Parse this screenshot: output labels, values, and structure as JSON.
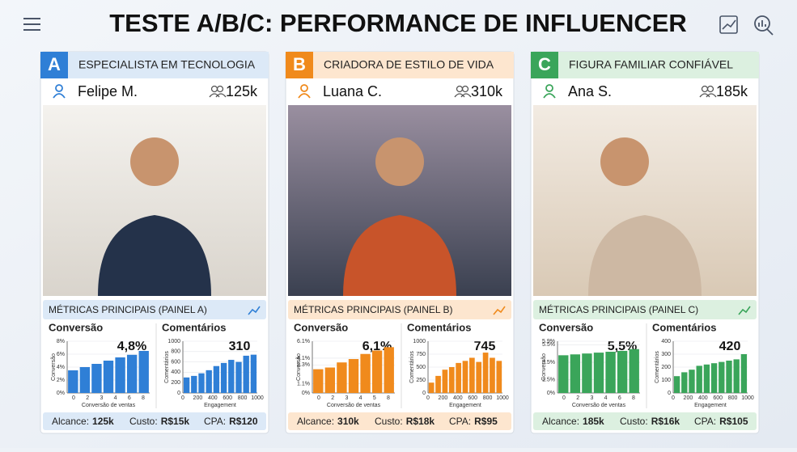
{
  "title": "TESTE A/B/C: PERFORMANCE DE INFLUENCER",
  "panels": [
    {
      "letter": "A",
      "color": "#2f7fd6",
      "tint": "#dce9f7",
      "category": "ESPECIALISTA EM TECNOLOGIA",
      "name": "Felipe M.",
      "followers": "125k",
      "metrics_title": "MÉTRICAS PRINCIPAIS (PAINEL A)",
      "conversion": {
        "title": "Conversão",
        "big_label": "4,8%",
        "ylabel": "Conversão",
        "xlabel": "Conversão de ventas",
        "ylim": [
          0,
          8
        ],
        "yticks": [
          {
            "value": 0,
            "label": "0%"
          },
          {
            "value": 2,
            "label": "2%"
          },
          {
            "value": 4,
            "label": "4%"
          },
          {
            "value": 6,
            "label": "6%"
          },
          {
            "value": 8,
            "label": "8%"
          }
        ],
        "xtick_labels": [
          "0",
          "2",
          "3",
          "4",
          "6",
          "8"
        ],
        "values": [
          3.5,
          4.0,
          4.5,
          5.0,
          5.5,
          5.9,
          6.5
        ]
      },
      "comments": {
        "title": "Comentários",
        "big_label": "310",
        "ylabel": "Comentários",
        "xlabel": "Engagement",
        "ylim": [
          0,
          1000
        ],
        "yticks": [
          0,
          200,
          400,
          600,
          800,
          1000
        ],
        "xlim": [
          0,
          1000
        ],
        "xticks": [
          0,
          200,
          400,
          600,
          800,
          1000
        ],
        "values": [
          300,
          330,
          380,
          440,
          520,
          580,
          640,
          600,
          720,
          740
        ]
      },
      "footer": [
        {
          "label": "Alcance:",
          "value": "125k"
        },
        {
          "label": "Custo:",
          "value": "R$15k"
        },
        {
          "label": "CPA:",
          "value": "R$120"
        }
      ]
    },
    {
      "letter": "B",
      "color": "#f08a1c",
      "tint": "#fde6cf",
      "category": "CRIADORA DE ESTILO DE VIDA",
      "name": "Luana C.",
      "followers": "310k",
      "metrics_title": "MÉTRICAS PRINCIPAIS (PAINEL B)",
      "conversion": {
        "title": "Conversão",
        "big_label": "6,1%",
        "ylabel": "Conversão",
        "xlabel": "Conversão de ventas",
        "ylim": [
          0,
          6.1
        ],
        "yticks": [
          {
            "value": 0,
            "label": "0%"
          },
          {
            "value": 1.1,
            "label": "1.1%"
          },
          {
            "value": 3.3,
            "label": "3.3%"
          },
          {
            "value": 4.1,
            "label": "4.1%"
          },
          {
            "value": 6.1,
            "label": "6.1%"
          }
        ],
        "xtick_labels": [
          "0",
          "2",
          "3",
          "4",
          "5",
          "8"
        ],
        "values": [
          2.8,
          3.0,
          3.6,
          4.0,
          4.6,
          5.0,
          5.4
        ]
      },
      "comments": {
        "title": "Comentários",
        "big_label": "745",
        "ylabel": "Comentários",
        "xlabel": "Engagement",
        "ylim": [
          0,
          1000
        ],
        "yticks": [
          0,
          250,
          500,
          750,
          1000
        ],
        "xlim": [
          0,
          1000
        ],
        "xticks": [
          0,
          200,
          400,
          600,
          800,
          1000
        ],
        "values": [
          200,
          330,
          450,
          500,
          580,
          620,
          680,
          600,
          780,
          680,
          620
        ]
      },
      "footer": [
        {
          "label": "Alcance:",
          "value": "310k"
        },
        {
          "label": "Custo:",
          "value": "R$18k"
        },
        {
          "label": "CPA:",
          "value": "R$95"
        }
      ]
    },
    {
      "letter": "C",
      "color": "#3aa55a",
      "tint": "#dcf0e0",
      "category": "FIGURA FAMILIAR CONFIÁVEL",
      "name": "Ana S.",
      "followers": "185k",
      "metrics_title": "MÉTRICAS PRINCIPAIS (PAINEL C)",
      "conversion": {
        "title": "Conversão",
        "big_label": "5,5%",
        "ylabel": "Conversão",
        "xlabel": "Conversão de ventas",
        "ylim": [
          0,
          5.9
        ],
        "yticks": [
          {
            "value": 0,
            "label": "0%"
          },
          {
            "value": 1.5,
            "label": "1.5%"
          },
          {
            "value": 3.5,
            "label": "3.5%"
          },
          {
            "value": 5.5,
            "label": "5.5%"
          },
          {
            "value": 5.9,
            "label": "5.9%"
          }
        ],
        "xtick_labels": [
          "0",
          "2",
          "3",
          "4",
          "6",
          "8"
        ],
        "values": [
          4.3,
          4.4,
          4.5,
          4.6,
          4.7,
          4.8,
          5.0
        ]
      },
      "comments": {
        "title": "Comentários",
        "big_label": "420",
        "ylabel": "Comentários",
        "xlabel": "Engagement",
        "ylim": [
          0,
          400
        ],
        "yticks": [
          0,
          100,
          200,
          300,
          400
        ],
        "xlim": [
          0,
          1000
        ],
        "xticks": [
          0,
          200,
          400,
          600,
          800,
          1000
        ],
        "values": [
          130,
          160,
          180,
          210,
          220,
          230,
          240,
          250,
          260,
          300
        ]
      },
      "footer": [
        {
          "label": "Alcance:",
          "value": "185k"
        },
        {
          "label": "Custo:",
          "value": "R$16k"
        },
        {
          "label": "CPA:",
          "value": "R$105"
        }
      ]
    }
  ]
}
